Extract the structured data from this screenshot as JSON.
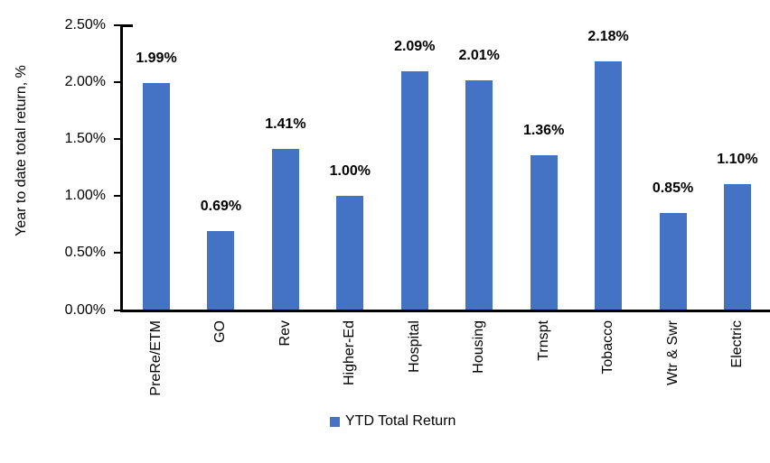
{
  "chart_data": {
    "type": "bar",
    "title": "",
    "categories": [
      "PreRe/ETM",
      "GO",
      "Rev",
      "Higher-Ed",
      "Hospital",
      "Housing",
      "Trnspt",
      "Tobacco",
      "Wtr & Swr",
      "Electric"
    ],
    "values": [
      1.99,
      0.69,
      1.41,
      1.0,
      2.09,
      2.01,
      1.36,
      2.18,
      0.85,
      1.1
    ],
    "value_labels": [
      "1.99%",
      "0.69%",
      "1.41%",
      "1.00%",
      "2.09%",
      "2.01%",
      "1.36%",
      "2.18%",
      "0.85%",
      "1.10%"
    ],
    "xlabel": "",
    "ylabel": "Year to date total return, %",
    "ylim": [
      0,
      2.5
    ],
    "yticks": [
      0,
      0.5,
      1.0,
      1.5,
      2.0,
      2.5
    ],
    "ytick_labels": [
      "0.00%",
      "0.50%",
      "1.00%",
      "1.50%",
      "2.00%",
      "2.50%"
    ],
    "grid": false,
    "legend": {
      "position": "bottom",
      "entries": [
        {
          "label": "YTD Total Return",
          "color": "#4472C4"
        }
      ]
    },
    "bar_color": "#4472C4",
    "axis_color": "#000000"
  }
}
